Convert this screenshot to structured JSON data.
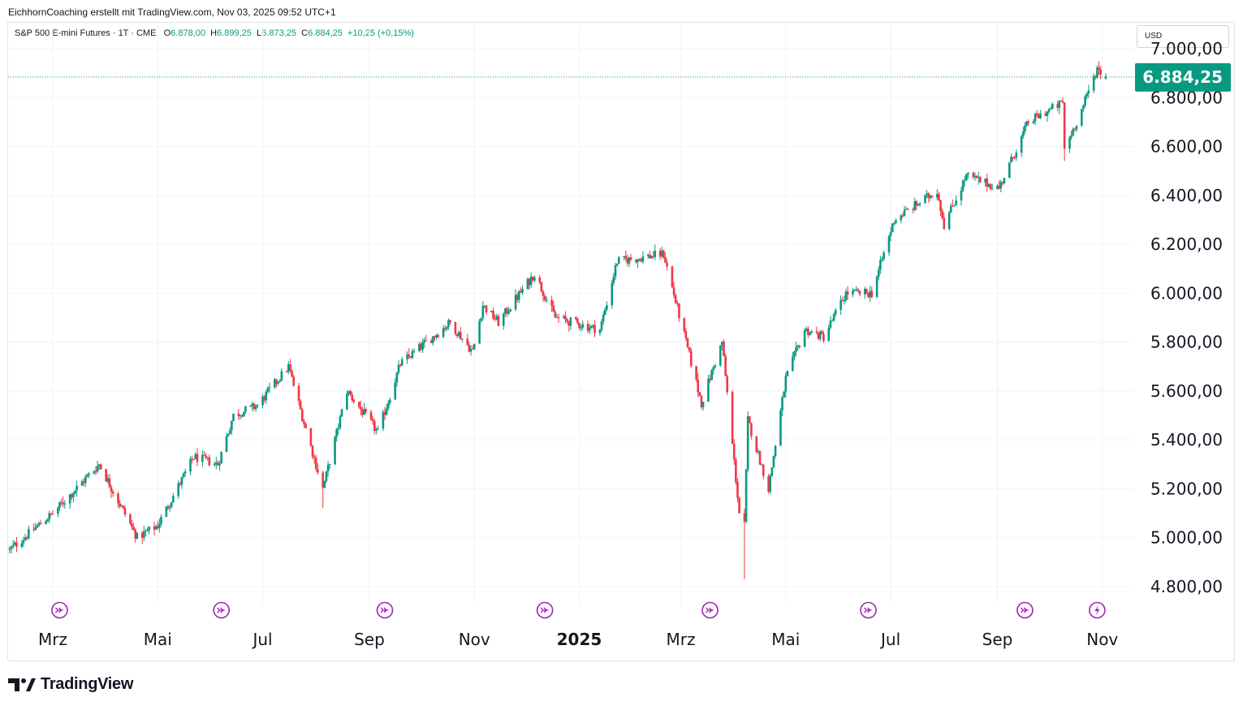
{
  "header": {
    "attribution": "EichhornCoaching erstellt mit TradingView.com, Nov 03, 2025 09:52 UTC+1"
  },
  "legend": {
    "symbol": "S&P 500 E-mini Futures · 1T · CME",
    "open_label": "O",
    "open": "6.878,00",
    "high_label": "H",
    "high": "6.899,25",
    "low_label": "L",
    "low": "6.873,25",
    "close_label": "C",
    "close": "6.884,25",
    "change": "+10,25 (+0,15%)"
  },
  "currency": "USD",
  "price_label": "6.884,25",
  "brand": "TradingView",
  "colors": {
    "up": "#089981",
    "down": "#f23645",
    "event": "#9c27b0"
  },
  "chart_data": {
    "type": "candlestick",
    "title": "S&P 500 E-mini Futures · 1T · CME",
    "ylim": [
      4730,
      7060
    ],
    "y_ticks": [
      "4.800,00",
      "5.000,00",
      "5.200,00",
      "5.400,00",
      "5.600,00",
      "5.800,00",
      "6.000,00",
      "6.200,00",
      "6.400,00",
      "6.600,00",
      "6.800,00",
      "7.000,00"
    ],
    "y_tick_values": [
      4800,
      5000,
      5200,
      5400,
      5600,
      5800,
      6000,
      6200,
      6400,
      6600,
      6800,
      7000
    ],
    "x_ticks": [
      {
        "label": "Mrz",
        "date": "2024-03-01",
        "bold": false
      },
      {
        "label": "Mai",
        "date": "2024-05-01",
        "bold": false
      },
      {
        "label": "Jul",
        "date": "2024-07-01",
        "bold": false
      },
      {
        "label": "Sep",
        "date": "2024-09-01",
        "bold": false
      },
      {
        "label": "Nov",
        "date": "2024-11-01",
        "bold": false
      },
      {
        "label": "2025",
        "date": "2025-01-01",
        "bold": true
      },
      {
        "label": "Mrz",
        "date": "2025-03-01",
        "bold": false
      },
      {
        "label": "Mai",
        "date": "2025-05-01",
        "bold": false
      },
      {
        "label": "Jul",
        "date": "2025-07-01",
        "bold": false
      },
      {
        "label": "Sep",
        "date": "2025-09-01",
        "bold": false
      },
      {
        "label": "Nov",
        "date": "2025-11-01",
        "bold": false
      }
    ],
    "date_range": [
      "2024-02-05",
      "2025-11-03"
    ],
    "close_path": [
      {
        "date": "2024-02-05",
        "close": 4950
      },
      {
        "date": "2024-03-01",
        "close": 5100
      },
      {
        "date": "2024-03-28",
        "close": 5300
      },
      {
        "date": "2024-04-19",
        "close": 5000
      },
      {
        "date": "2024-05-01",
        "close": 5050
      },
      {
        "date": "2024-05-22",
        "close": 5330
      },
      {
        "date": "2024-06-05",
        "close": 5300
      },
      {
        "date": "2024-06-14",
        "close": 5500
      },
      {
        "date": "2024-06-28",
        "close": 5540
      },
      {
        "date": "2024-07-16",
        "close": 5700
      },
      {
        "date": "2024-07-25",
        "close": 5470
      },
      {
        "date": "2024-08-05",
        "close": 5200
      },
      {
        "date": "2024-08-19",
        "close": 5600
      },
      {
        "date": "2024-09-06",
        "close": 5430
      },
      {
        "date": "2024-09-19",
        "close": 5710
      },
      {
        "date": "2024-10-18",
        "close": 5880
      },
      {
        "date": "2024-10-31",
        "close": 5760
      },
      {
        "date": "2024-11-06",
        "close": 5950
      },
      {
        "date": "2024-11-15",
        "close": 5880
      },
      {
        "date": "2024-12-06",
        "close": 6080
      },
      {
        "date": "2024-12-18",
        "close": 5900
      },
      {
        "date": "2025-01-13",
        "close": 5850
      },
      {
        "date": "2025-01-23",
        "close": 6130
      },
      {
        "date": "2025-02-19",
        "close": 6160
      },
      {
        "date": "2025-03-13",
        "close": 5550
      },
      {
        "date": "2025-03-25",
        "close": 5800
      },
      {
        "date": "2025-04-04",
        "close": 5100
      },
      {
        "date": "2025-04-07",
        "close": 5050
      },
      {
        "date": "2025-04-09",
        "close": 5480
      },
      {
        "date": "2025-04-21",
        "close": 5200
      },
      {
        "date": "2025-05-01",
        "close": 5650
      },
      {
        "date": "2025-05-12",
        "close": 5850
      },
      {
        "date": "2025-05-23",
        "close": 5820
      },
      {
        "date": "2025-06-05",
        "close": 6000
      },
      {
        "date": "2025-06-20",
        "close": 6000
      },
      {
        "date": "2025-07-03",
        "close": 6300
      },
      {
        "date": "2025-07-28",
        "close": 6420
      },
      {
        "date": "2025-08-01",
        "close": 6280
      },
      {
        "date": "2025-08-14",
        "close": 6480
      },
      {
        "date": "2025-09-02",
        "close": 6430
      },
      {
        "date": "2025-09-19",
        "close": 6700
      },
      {
        "date": "2025-10-09",
        "close": 6780
      },
      {
        "date": "2025-10-10",
        "close": 6590
      },
      {
        "date": "2025-10-20",
        "close": 6750
      },
      {
        "date": "2025-10-29",
        "close": 6920
      },
      {
        "date": "2025-11-03",
        "close": 6884.25
      }
    ],
    "current_price": 6884.25,
    "event_dates": [
      "2024-03-05",
      "2024-06-07",
      "2024-09-10",
      "2024-12-12",
      "2025-03-18",
      "2025-06-18",
      "2025-09-17",
      "2025-10-29"
    ]
  }
}
